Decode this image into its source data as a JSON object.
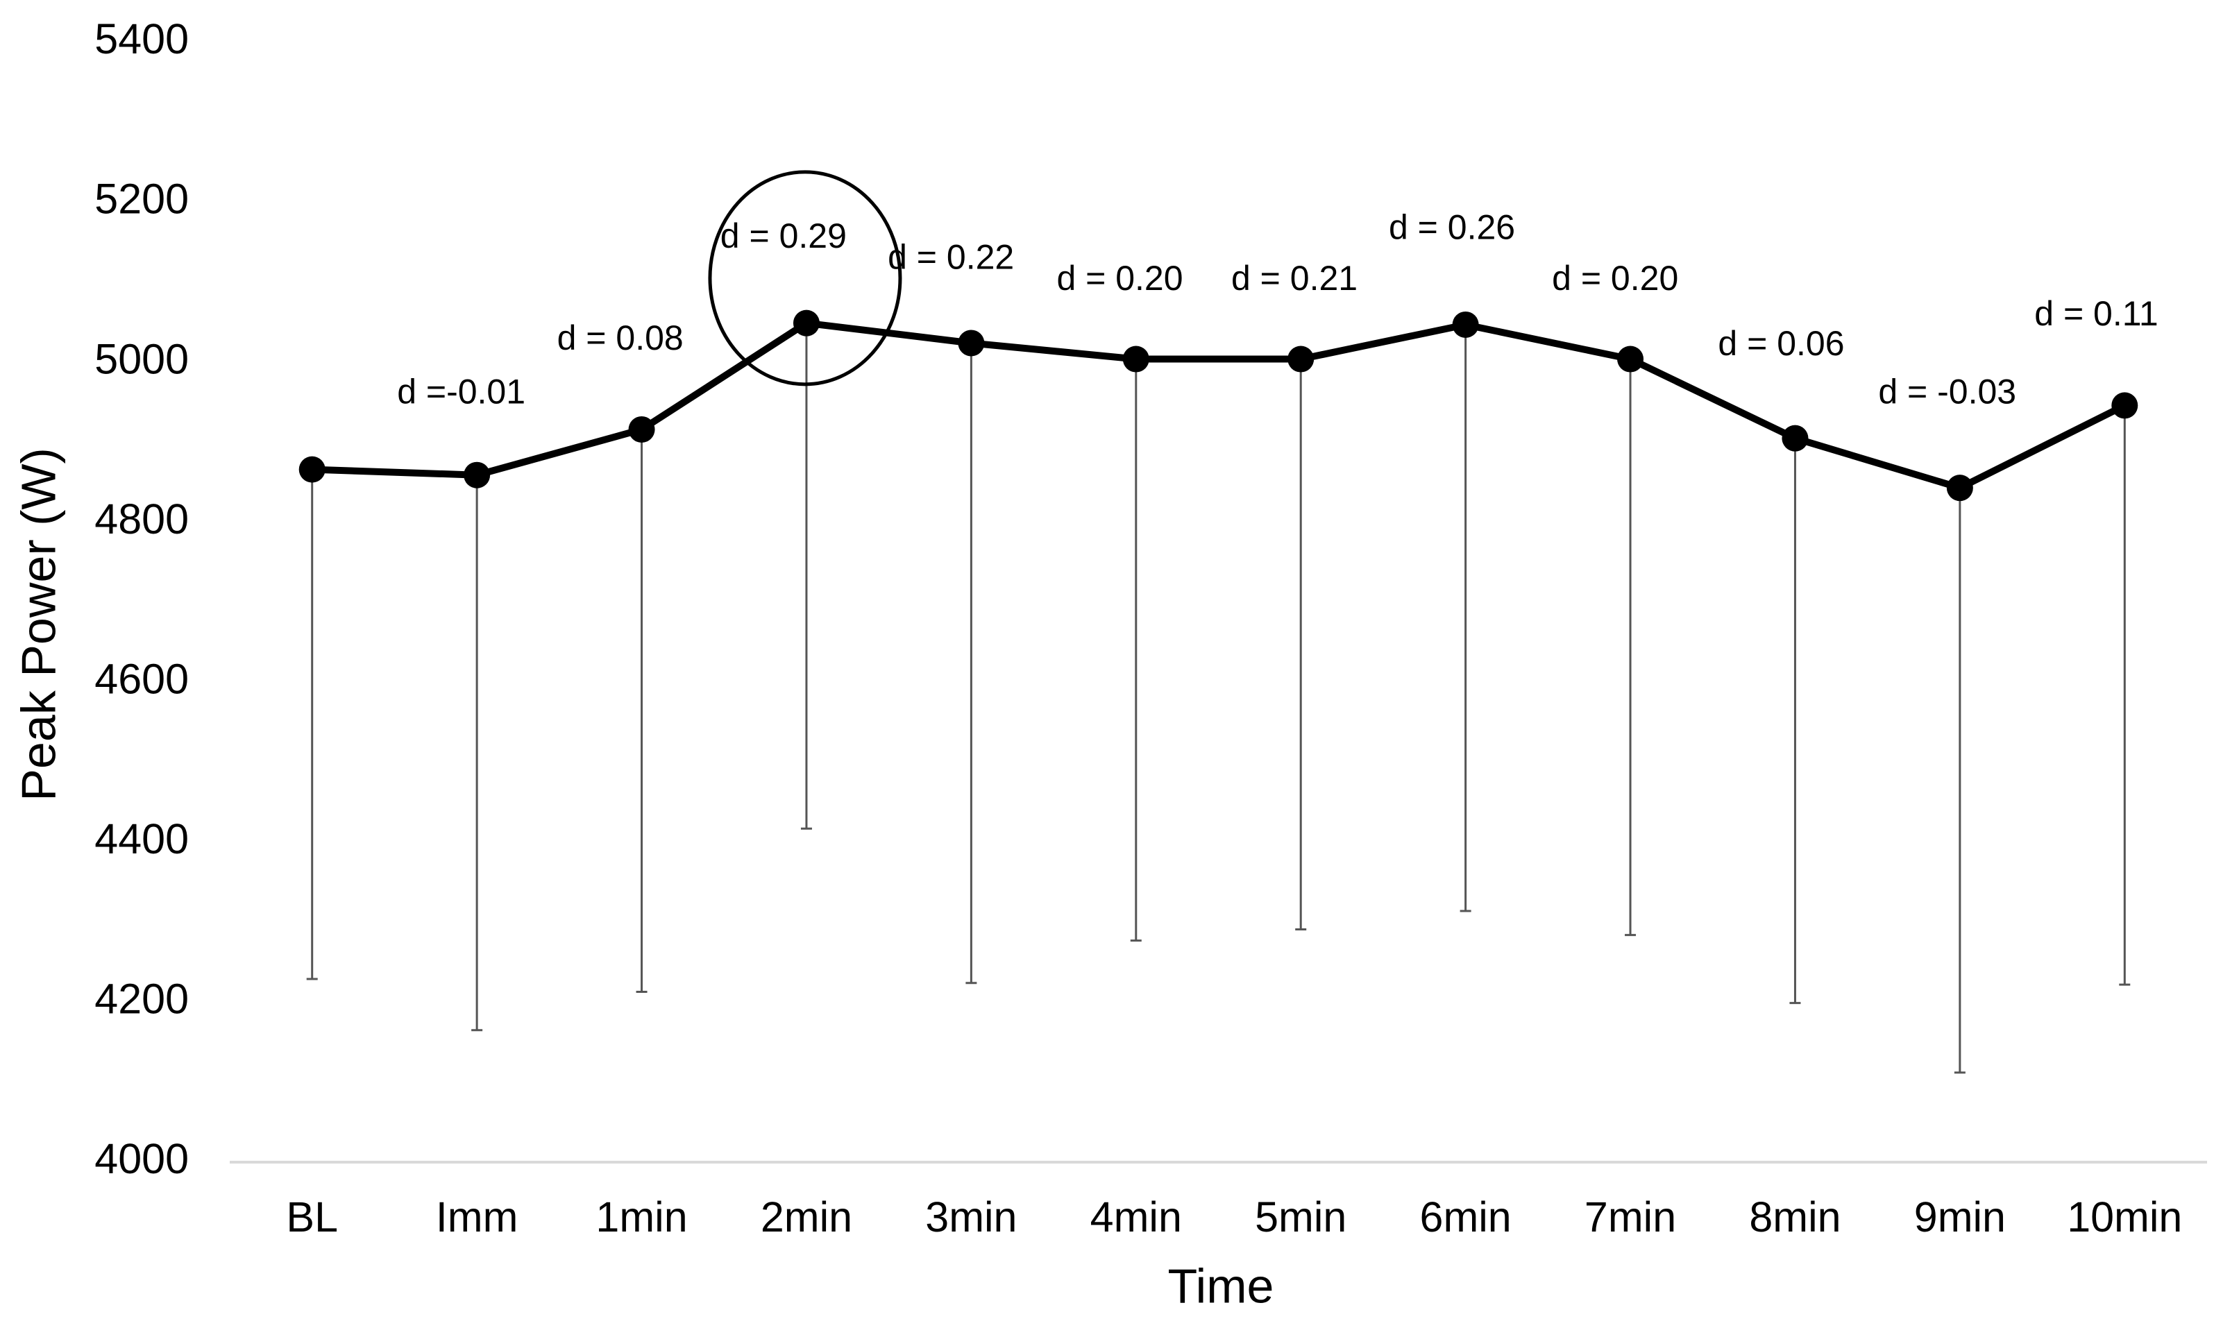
{
  "chart_data": {
    "type": "line",
    "x_label": "Time",
    "y_label": "Peak Power (W)",
    "categories": [
      "BL",
      "Imm",
      "1min",
      "2min",
      "3min",
      "4min",
      "5min",
      "6min",
      "7min",
      "8min",
      "9min",
      "10min"
    ],
    "values": [
      4866,
      4859,
      4916,
      5049,
      5024,
      5004,
      5004,
      5047,
      5004,
      4905,
      4843,
      4946
    ],
    "errors": [
      637,
      694,
      703,
      632,
      800,
      727,
      713,
      733,
      720,
      706,
      731,
      724
    ],
    "annotations": [
      null,
      "d =-0.01",
      "d = 0.08",
      "d = 0.29",
      "d = 0.22",
      "d = 0.20",
      "d = 0.21",
      "d = 0.26",
      "d = 0.20",
      "d = 0.06",
      "d = -0.03",
      "d = 0.11"
    ],
    "color": "#000000",
    "error_color": "#555555",
    "ylim": [
      4000,
      5400
    ],
    "yticks": [
      4000,
      4200,
      4400,
      4600,
      4800,
      5000,
      5200,
      5400
    ],
    "grid": false
  }
}
